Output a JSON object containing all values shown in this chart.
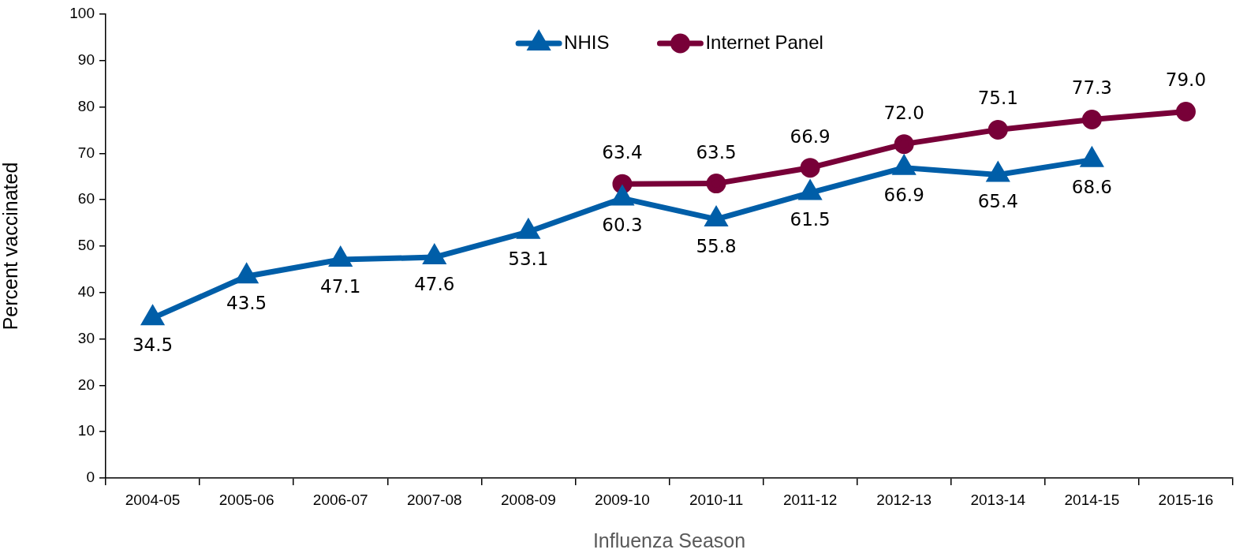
{
  "chart_data": {
    "type": "line",
    "xlabel": "Influenza Season",
    "ylabel": "Percent vaccinated",
    "categories": [
      "2004-05",
      "2005-06",
      "2006-07",
      "2007-08",
      "2008-09",
      "2009-10",
      "2010-11",
      "2011-12",
      "2012-13",
      "2013-14",
      "2014-15",
      "2015-16"
    ],
    "series": [
      {
        "name": "NHIS",
        "color": "#005ea8",
        "marker": "triangle",
        "values": [
          34.5,
          43.5,
          47.1,
          47.6,
          53.1,
          60.3,
          55.8,
          61.5,
          66.9,
          65.4,
          68.6,
          null
        ],
        "value_labels": [
          "34.5",
          "43.5",
          "47.1",
          "47.6",
          "53.1",
          "60.3",
          "55.8",
          "61.5",
          "66.9",
          "65.4",
          "68.6",
          null
        ]
      },
      {
        "name": "Internet Panel",
        "color": "#780038",
        "marker": "circle",
        "values": [
          null,
          null,
          null,
          null,
          null,
          63.4,
          63.5,
          66.9,
          72.0,
          75.1,
          77.3,
          79.0
        ],
        "value_labels": [
          null,
          null,
          null,
          null,
          null,
          "63.4",
          "63.5",
          "66.9",
          "72.0",
          "75.1",
          "77.3",
          "79.0"
        ]
      }
    ],
    "ylim": [
      0,
      100
    ],
    "yticks": [
      0,
      10,
      20,
      30,
      40,
      50,
      60,
      70,
      80,
      90,
      100
    ],
    "grid": false,
    "legend": "top"
  }
}
